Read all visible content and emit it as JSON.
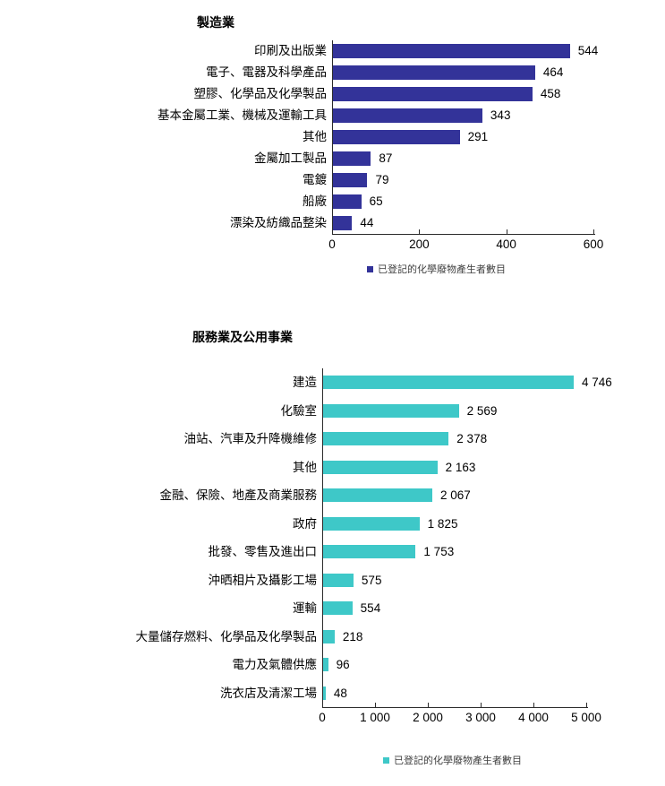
{
  "chart_data": [
    {
      "type": "bar",
      "orientation": "horizontal",
      "title": "製造業",
      "categories": [
        "印刷及出版業",
        "電子、電器及科學產品",
        "塑膠、化學品及化學製品",
        "基本金屬工業、機械及運輸工具",
        "其他",
        "金屬加工製品",
        "電鍍",
        "船廠",
        "漂染及紡織品整染"
      ],
      "values": [
        544,
        464,
        458,
        343,
        291,
        87,
        79,
        65,
        44
      ],
      "value_labels": [
        "544",
        "464",
        "458",
        "343",
        "291",
        "87",
        "79",
        "65",
        "44"
      ],
      "xlim": [
        0,
        600
      ],
      "xticks": [
        0,
        200,
        400,
        600
      ],
      "xtick_labels": [
        "0",
        "200",
        "400",
        "600"
      ],
      "bar_color": "#333399",
      "legend": "已登記的化學廢物產生者數目",
      "legend_position": "bottom",
      "grid": false
    },
    {
      "type": "bar",
      "orientation": "horizontal",
      "title": "服務業及公用事業",
      "categories": [
        "建造",
        "化驗室",
        "油站、汽車及升降機維修",
        "其他",
        "金融、保險、地產及商業服務",
        "政府",
        "批發、零售及進出口",
        "沖晒相片及攝影工場",
        "運輸",
        "大量儲存燃料、化學品及化學製品",
        "電力及氣體供應",
        "洗衣店及清潔工場"
      ],
      "values": [
        4746,
        2569,
        2378,
        2163,
        2067,
        1825,
        1753,
        575,
        554,
        218,
        96,
        48
      ],
      "value_labels": [
        "4 746",
        "2 569",
        "2 378",
        "2 163",
        "2 067",
        "1 825",
        "1 753",
        "575",
        "554",
        "218",
        "96",
        "48"
      ],
      "xlim": [
        0,
        5000
      ],
      "xticks": [
        0,
        1000,
        2000,
        3000,
        4000,
        5000
      ],
      "xtick_labels": [
        "0",
        "1 000",
        "2 000",
        "3 000",
        "4 000",
        "5 000"
      ],
      "bar_color": "#3EC8C8",
      "legend": "已登記的化學廢物產生者數目",
      "legend_position": "bottom",
      "grid": false
    }
  ]
}
